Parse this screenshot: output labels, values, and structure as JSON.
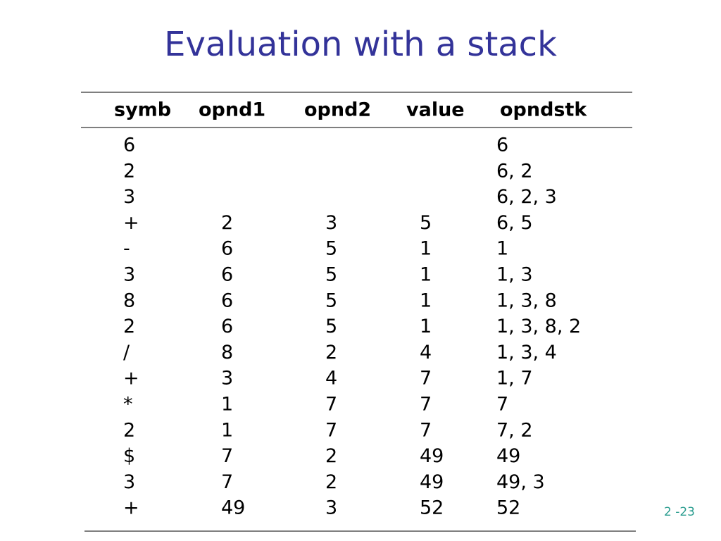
{
  "slide": {
    "title": "Evaluation with a stack",
    "table": {
      "header": [
        "symb",
        "opnd1",
        "opnd2",
        "value",
        "opndstk"
      ],
      "rows": [
        [
          "6",
          null,
          null,
          null,
          "6"
        ],
        [
          "2",
          null,
          null,
          null,
          "6, 2"
        ],
        [
          "3",
          null,
          null,
          null,
          "6, 2, 3"
        ],
        [
          "+",
          "2",
          "3",
          "5",
          "6, 5"
        ],
        [
          "-",
          "6",
          "5",
          "1",
          "1"
        ],
        [
          "3",
          "6",
          "5",
          "1",
          "1, 3"
        ],
        [
          "8",
          "6",
          "5",
          "1",
          "1, 3, 8"
        ],
        [
          "2",
          "6",
          "5",
          "1",
          "1, 3, 8, 2"
        ],
        [
          "/",
          "8",
          "2",
          "4",
          "1, 3, 4"
        ],
        [
          "+",
          "3",
          "4",
          "7",
          "1, 7"
        ],
        [
          "*",
          "1",
          "7",
          "7",
          "7"
        ],
        [
          "2",
          "1",
          "7",
          "7",
          "7, 2"
        ],
        [
          "$",
          "7",
          "2",
          "49",
          "49"
        ],
        [
          "3",
          "7",
          "2",
          "49",
          "49, 3"
        ],
        [
          "+",
          "49",
          "3",
          "52",
          "52"
        ]
      ]
    },
    "page_number": "2 -23"
  }
}
